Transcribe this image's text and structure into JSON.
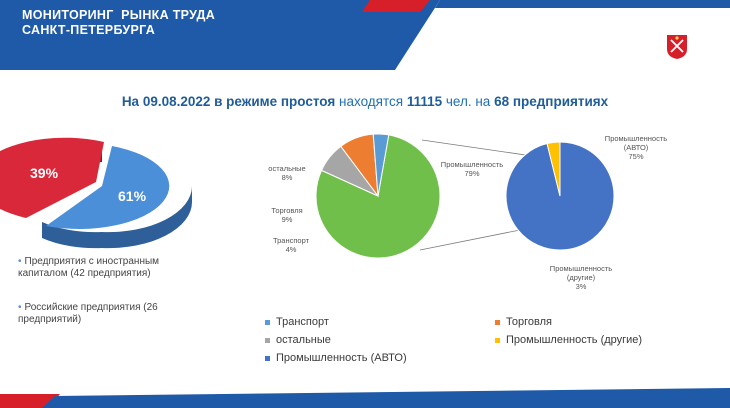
{
  "header": {
    "title_line1": "МОНИТОРИНГ  РЫНКА ТРУДА",
    "title_line2": "САНКТ-ПЕТЕРБУРГА"
  },
  "headline": {
    "prefix": "На 09.08.2022 в режиме простоя",
    "middle": " находятся ",
    "count": "11115",
    "unit": " чел. на ",
    "companies": "68 предприятиях"
  },
  "notes": {
    "foreign": "Предприятия с иностранным капиталом (42 предприятия)",
    "russian": "Российские предприятия (26 предприятий)"
  },
  "chart_data": [
    {
      "type": "pie",
      "labels": [
        "Предприятия с иностранным капиталом (42 предприятия)",
        "Российские предприятия (26 предприятий)"
      ],
      "values": [
        61,
        39
      ],
      "value_labels": [
        "61%",
        "39%"
      ],
      "colors": [
        "#4a8fd8",
        "#d8283a"
      ]
    },
    {
      "type": "pie",
      "labels": [
        "Промышленность",
        "остальные",
        "Торговля",
        "Транспорт"
      ],
      "value_labels": [
        "79%",
        "8%",
        "9%",
        "4%"
      ],
      "values": [
        79,
        8,
        9,
        4
      ],
      "colors": [
        "#6fbf4a",
        "#a6a6a6",
        "#ed7d31",
        "#5b9bd5"
      ]
    },
    {
      "type": "pie",
      "labels": [
        "Промышленность (АВТО)",
        "Промышленность (другие)"
      ],
      "value_labels": [
        "75%",
        "3%"
      ],
      "values": [
        75,
        3
      ],
      "colors": [
        "#4472c4",
        "#ffc000"
      ]
    }
  ],
  "legend": {
    "items": [
      {
        "label": "Транспорт",
        "color": "#5b9bd5"
      },
      {
        "label": "Торговля",
        "color": "#ed7d31"
      },
      {
        "label": "остальные",
        "color": "#a6a6a6"
      },
      {
        "label": "Промышленность (другие)",
        "color": "#ffc000"
      },
      {
        "label": "Промышленность (АВТО)",
        "color": "#4472c4"
      }
    ]
  },
  "colors": {
    "banner_blue": "#1e5aa8",
    "banner_red": "#d71f2a",
    "headline_blue": "#1f5c99"
  }
}
